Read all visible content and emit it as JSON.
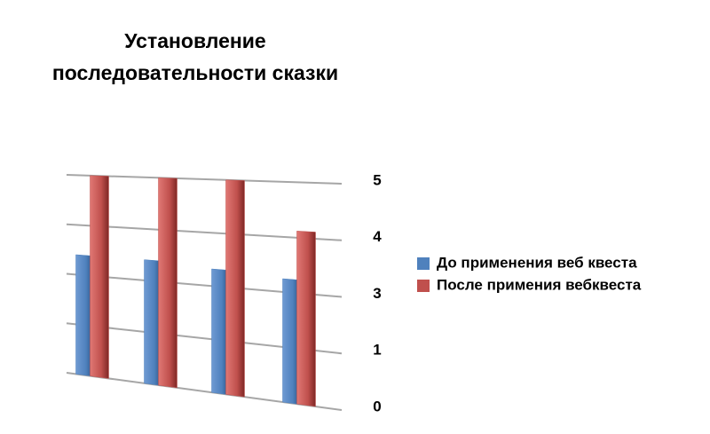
{
  "chart_data": {
    "type": "bar",
    "title": "Установление последовательности сказки",
    "categories": [
      null,
      null,
      null,
      null
    ],
    "series": [
      {
        "name": "До применения веб квеста",
        "color": "#4f81bd",
        "values": [
          3,
          3,
          2.9,
          2.8
        ]
      },
      {
        "name": "После примения вебквеста",
        "color": "#c0504d",
        "values": [
          5,
          5,
          5,
          3.9
        ]
      }
    ],
    "ylim": [
      0,
      5
    ],
    "yticks": [
      0,
      {
        "value": 1.25,
        "label": "1"
      },
      {
        "value": 2.5,
        "label": "3"
      },
      {
        "value": 3.75,
        "label": "4"
      },
      5
    ],
    "grid": true,
    "legend": "right"
  }
}
